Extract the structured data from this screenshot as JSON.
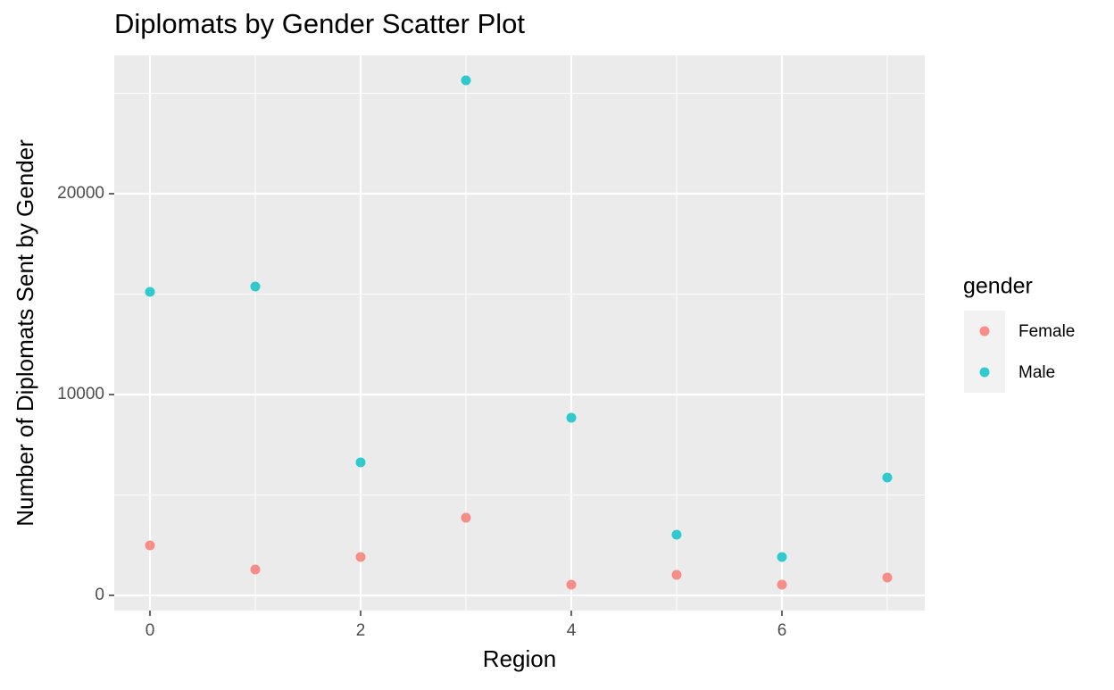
{
  "chart_data": {
    "type": "scatter",
    "title": "Diplomats by Gender Scatter Plot",
    "x_label": "Region",
    "y_label": "Number of Diplomats Sent by Gender",
    "legend_title": "gender",
    "x": [
      0,
      1,
      2,
      3,
      4,
      5,
      6,
      7
    ],
    "series": [
      {
        "name": "Female",
        "color": "#F8766D",
        "values": [
          2489,
          1289,
          1911,
          3867,
          533,
          1022,
          533,
          889
        ]
      },
      {
        "name": "Male",
        "color": "#00BFC4",
        "values": [
          15111,
          15378,
          6622,
          25644,
          8844,
          3022,
          1911,
          5867
        ]
      }
    ],
    "xlim": [
      -0.339,
      7.356
    ],
    "ylim": [
      -756,
      26889
    ],
    "xticks": [
      0,
      2,
      4,
      6
    ],
    "yticks": [
      0,
      10000,
      20000
    ],
    "minor_xticks": [
      1,
      3,
      5,
      7
    ],
    "minor_yticks": [
      5000,
      15000,
      25000
    ],
    "grid": true,
    "legend_position": "right"
  }
}
